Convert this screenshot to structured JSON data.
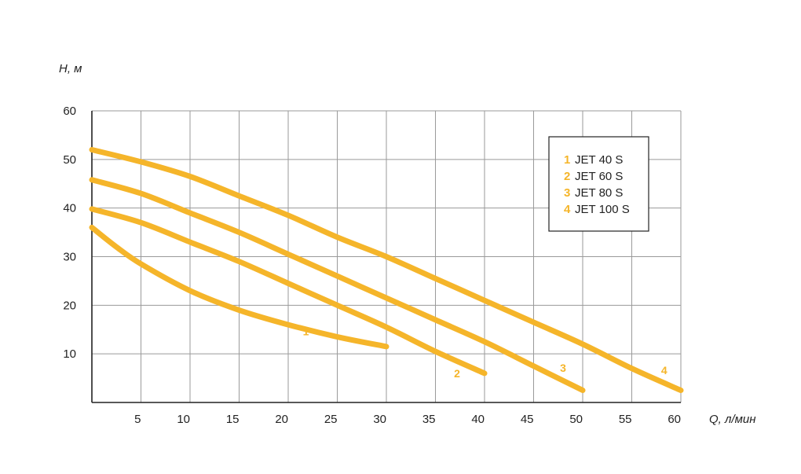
{
  "chart_data": {
    "type": "line",
    "xlabel": "Q, л/мин",
    "ylabel": "H, м",
    "xlim": [
      0,
      60
    ],
    "ylim": [
      0,
      60
    ],
    "x_ticks": [
      5,
      10,
      15,
      20,
      25,
      30,
      35,
      40,
      45,
      50,
      55,
      60
    ],
    "y_ticks": [
      10,
      20,
      30,
      40,
      50,
      60
    ],
    "grid": true,
    "legend_position": "top-right",
    "series_color": "#f5b52a",
    "series": [
      {
        "name": "JET 40 S",
        "label": "1",
        "points": [
          [
            0,
            36
          ],
          [
            2.5,
            32
          ],
          [
            5,
            28.5
          ],
          [
            10,
            23
          ],
          [
            15,
            19
          ],
          [
            20,
            16
          ],
          [
            25,
            13.5
          ],
          [
            30,
            11.5
          ]
        ]
      },
      {
        "name": "JET 60 S",
        "label": "2",
        "points": [
          [
            0,
            39.8
          ],
          [
            5,
            37
          ],
          [
            10,
            33
          ],
          [
            15,
            29
          ],
          [
            20,
            24.5
          ],
          [
            25,
            20
          ],
          [
            30,
            15.5
          ],
          [
            35,
            10.5
          ],
          [
            40,
            6
          ]
        ]
      },
      {
        "name": "JET 80 S",
        "label": "3",
        "points": [
          [
            0,
            45.8
          ],
          [
            5,
            43
          ],
          [
            10,
            39
          ],
          [
            15,
            35
          ],
          [
            20,
            30.5
          ],
          [
            25,
            26
          ],
          [
            30,
            21.5
          ],
          [
            35,
            17
          ],
          [
            40,
            12.5
          ],
          [
            45,
            7.5
          ],
          [
            50,
            2.5
          ]
        ]
      },
      {
        "name": "JET 100 S",
        "label": "4",
        "points": [
          [
            0,
            52
          ],
          [
            5,
            49.5
          ],
          [
            10,
            46.5
          ],
          [
            15,
            42.5
          ],
          [
            20,
            38.5
          ],
          [
            25,
            34
          ],
          [
            30,
            30
          ],
          [
            35,
            25.5
          ],
          [
            40,
            21
          ],
          [
            45,
            16.5
          ],
          [
            50,
            12
          ],
          [
            55,
            7
          ],
          [
            60,
            2.5
          ]
        ]
      }
    ]
  }
}
